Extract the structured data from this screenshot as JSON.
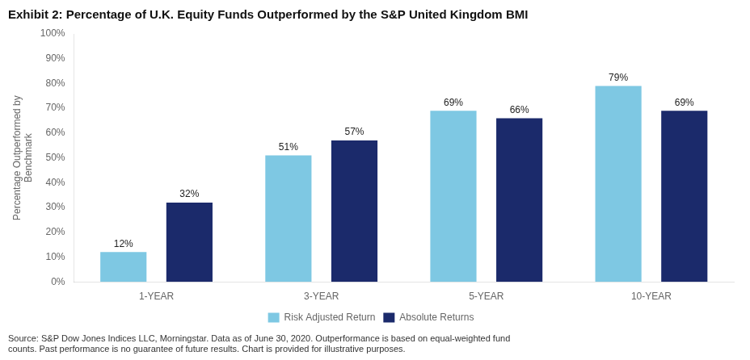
{
  "chart_data": {
    "type": "bar",
    "title": "Exhibit 2: Percentage of U.K. Equity Funds Outperformed by the S&P United Kingdom BMI",
    "categories": [
      "1-YEAR",
      "3-YEAR",
      "5-YEAR",
      "10-YEAR"
    ],
    "series": [
      {
        "name": "Risk Adjusted Return",
        "color": "#7ec8e3",
        "values": [
          12,
          51,
          69,
          79
        ],
        "value_labels": [
          "12%",
          "51%",
          "69%",
          "79%"
        ]
      },
      {
        "name": "Absolute Returns",
        "color": "#1b2a6b",
        "values": [
          32,
          57,
          66,
          69
        ],
        "value_labels": [
          "32%",
          "57%",
          "66%",
          "69%"
        ]
      }
    ],
    "ylabel": "Percentage Outperformed by\nBenchmark",
    "ylim": [
      0,
      100
    ],
    "yticks": [
      {
        "value": 0,
        "label": "0%"
      },
      {
        "value": 10,
        "label": "10%"
      },
      {
        "value": 20,
        "label": "20%"
      },
      {
        "value": 30,
        "label": "30%"
      },
      {
        "value": 40,
        "label": "40%"
      },
      {
        "value": 50,
        "label": "50%"
      },
      {
        "value": 60,
        "label": "60%"
      },
      {
        "value": 70,
        "label": "70%"
      },
      {
        "value": 80,
        "label": "80%"
      },
      {
        "value": 90,
        "label": "90%"
      },
      {
        "value": 100,
        "label": "100%"
      }
    ],
    "data_labels": true,
    "grid": false,
    "legend": "bottom",
    "footnote": "Source: S&P Dow Jones Indices LLC, Morningstar. Data as of June 30, 2020. Outperformance is based on equal-weighted fund\ncounts. Past performance is no guarantee of future results. Chart is provided for illustrative purposes."
  }
}
